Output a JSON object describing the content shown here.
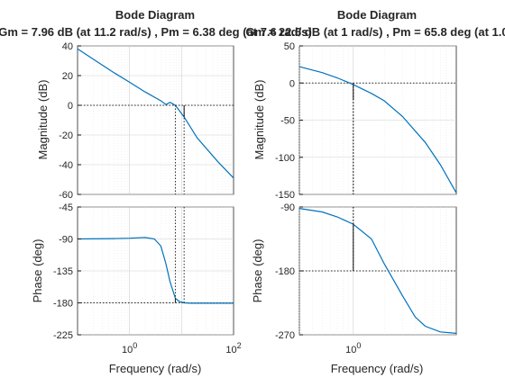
{
  "chart_data": [
    {
      "type": "line",
      "panel": "left",
      "title": "Bode Diagram",
      "subtitle": "Gm = 7.96 dB (at 11.2 rad/s) ,  Pm = 6.38 deg (at 7.6 rad/s)",
      "xlabel": "Frequency  (rad/s)",
      "x_scale": "log",
      "xlim": [
        0.1,
        100
      ],
      "x_ticks": [
        1,
        100
      ],
      "x_tick_labels": [
        "10^0",
        "10^2"
      ],
      "magnitude": {
        "ylabel": "Magnitude (dB)",
        "ylim": [
          -60,
          40
        ],
        "y_ticks": [
          -60,
          -40,
          -20,
          0,
          20,
          40
        ],
        "x": [
          0.1,
          0.2,
          0.5,
          1,
          2,
          4,
          5,
          6,
          7.6,
          11.2,
          20,
          50,
          100
        ],
        "y": [
          38,
          31,
          22,
          15.5,
          9,
          3,
          0.5,
          2,
          0,
          -7.96,
          -22,
          -38,
          -49
        ]
      },
      "phase": {
        "ylabel": "Phase (deg)",
        "ylim": [
          -225,
          -45
        ],
        "y_ticks": [
          -225,
          -180,
          -135,
          -90,
          -45
        ],
        "x": [
          0.1,
          0.5,
          1,
          2,
          3,
          4,
          5,
          6,
          7.6,
          9,
          11.2,
          15,
          20,
          50,
          100
        ],
        "y": [
          -90,
          -89.5,
          -89,
          -88,
          -90,
          -100,
          -125,
          -150,
          -173.6,
          -178,
          -180,
          -180.5,
          -180.5,
          -180.5,
          -180.5
        ]
      },
      "margins": {
        "gm_db": 7.96,
        "gm_freq": 11.2,
        "pm_deg": 6.38,
        "pm_freq": 7.6
      }
    },
    {
      "type": "line",
      "panel": "right",
      "title": "Bode Diagram",
      "subtitle": "Gm = 22.6 dB (at 1 rad/s) ,  Pm = 65.8 deg (at 1.0",
      "xlabel": "Frequency  (rad/s)",
      "x_scale": "log",
      "xlim": [
        0.3,
        10
      ],
      "x_ticks": [
        1
      ],
      "x_tick_labels": [
        "10^0"
      ],
      "magnitude": {
        "ylabel": "Magnitude (dB)",
        "ylim": [
          -150,
          50
        ],
        "y_ticks": [
          -150,
          -100,
          -50,
          0,
          50
        ],
        "x": [
          0.3,
          0.5,
          0.7,
          1,
          1.5,
          2,
          3,
          5,
          7,
          10
        ],
        "y": [
          22,
          14,
          7,
          -2,
          -14,
          -24,
          -45,
          -80,
          -110,
          -148
        ]
      },
      "phase": {
        "ylabel": "Phase (deg)",
        "ylim": [
          -270,
          -90
        ],
        "y_ticks": [
          -270,
          -180,
          -90
        ],
        "x": [
          0.3,
          0.5,
          0.7,
          1,
          1.5,
          2,
          3,
          4,
          5,
          7,
          10
        ],
        "y": [
          -92,
          -97,
          -104,
          -114.2,
          -135,
          -170,
          -215,
          -245,
          -258,
          -266,
          -268
        ]
      },
      "margins": {
        "gm_db": 22.6,
        "gm_freq": 1,
        "pm_deg": 65.8,
        "pm_freq": 1.0
      }
    }
  ]
}
